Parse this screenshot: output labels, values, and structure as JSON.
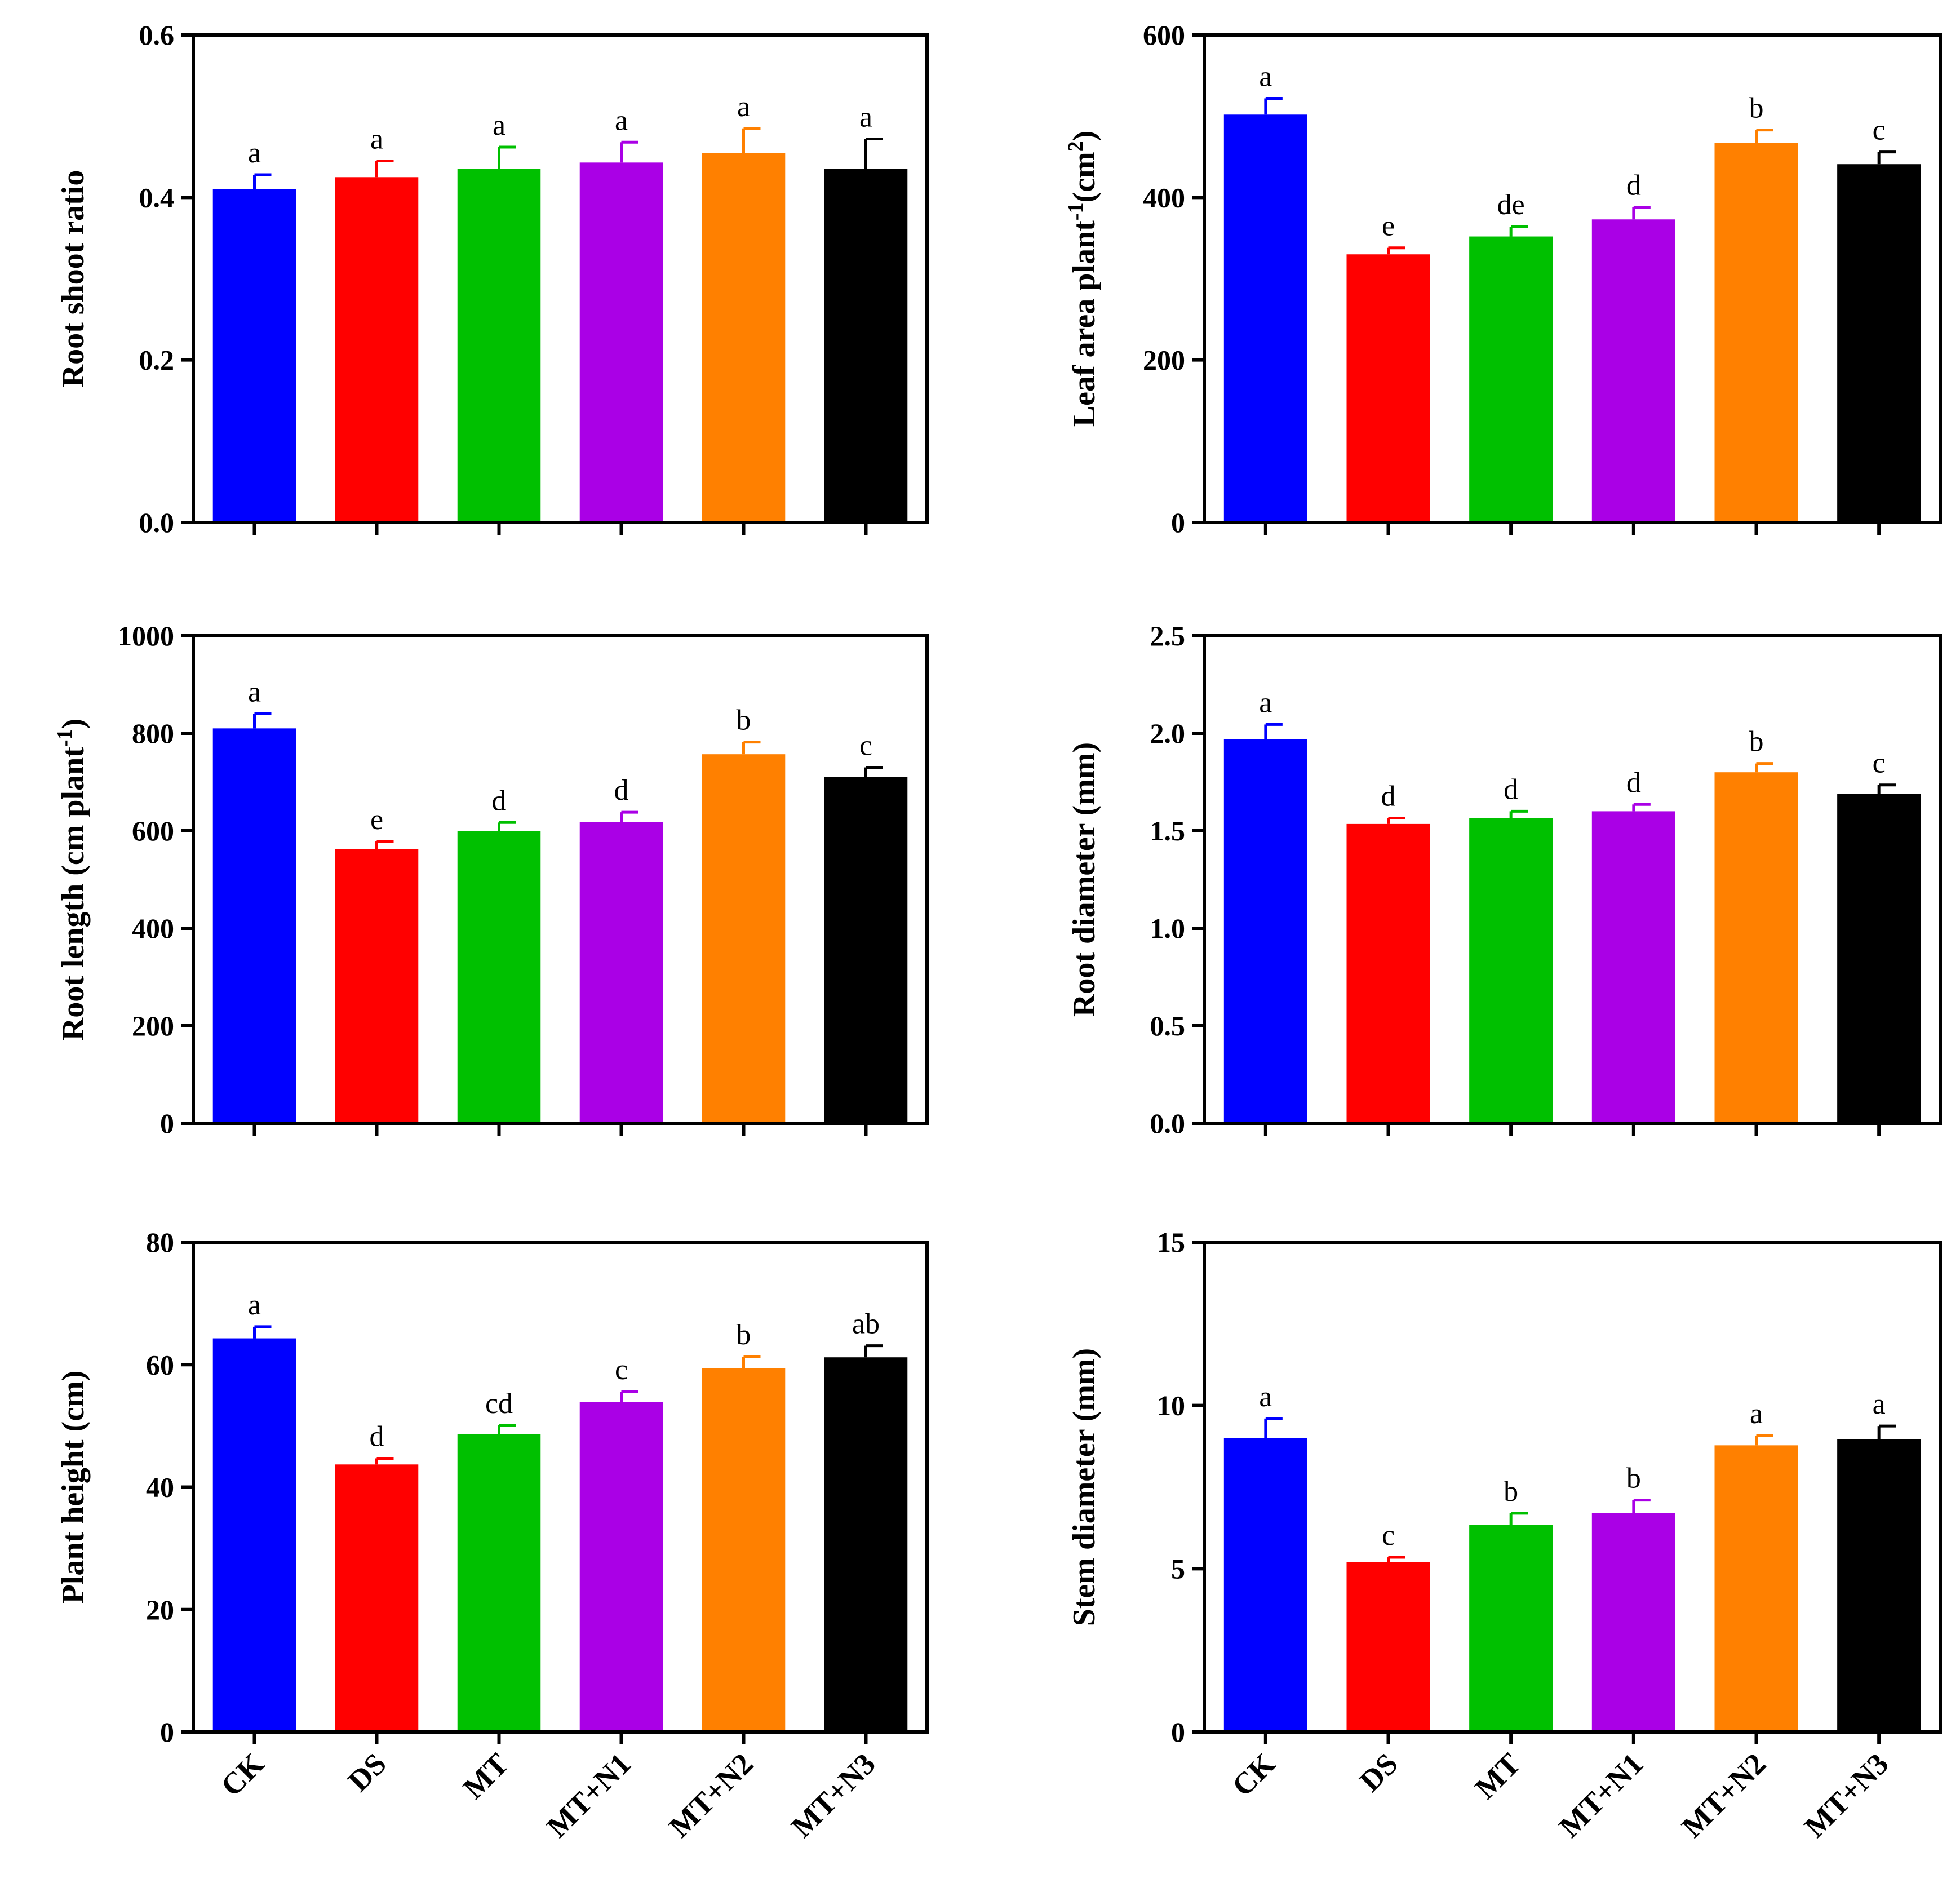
{
  "chart_data": [
    {
      "type": "bar",
      "categories": [
        "CK",
        "DS",
        "MT",
        "MT+N1",
        "MT+N2",
        "MT+N3"
      ],
      "values": [
        0.41,
        0.425,
        0.435,
        0.443,
        0.455,
        0.435
      ],
      "errors": [
        0.018,
        0.02,
        0.027,
        0.025,
        0.03,
        0.037
      ],
      "significance": [
        "a",
        "a",
        "a",
        "a",
        "a",
        "a"
      ],
      "ylabel": "Root shoot ratio",
      "ylim": [
        0,
        0.6
      ],
      "yticks": [
        0.0,
        0.2,
        0.4,
        0.6
      ],
      "ytick_labels": [
        "0.0",
        "0.2",
        "0.4",
        "0.6"
      ],
      "show_category_labels": false
    },
    {
      "type": "bar",
      "categories": [
        "CK",
        "DS",
        "MT",
        "MT+N1",
        "MT+N2",
        "MT+N3"
      ],
      "values": [
        502,
        330,
        352,
        373,
        467,
        441
      ],
      "errors": [
        20,
        8,
        12,
        15,
        16,
        15
      ],
      "significance": [
        "a",
        "e",
        "de",
        "d",
        "b",
        "c"
      ],
      "ylabel": "Leaf area plant",
      "ylabel_sup": "-1",
      "ylabel_tail": "(cm",
      "ylabel_sup2": "2",
      "ylabel_end": ")",
      "ylim": [
        0,
        600
      ],
      "yticks": [
        0,
        200,
        400,
        600
      ],
      "ytick_labels": [
        "0",
        "200",
        "400",
        "600"
      ],
      "show_category_labels": false
    },
    {
      "type": "bar",
      "categories": [
        "CK",
        "DS",
        "MT",
        "MT+N1",
        "MT+N2",
        "MT+N3"
      ],
      "values": [
        810,
        563,
        600,
        618,
        757,
        710
      ],
      "errors": [
        30,
        15,
        17,
        20,
        25,
        20
      ],
      "significance": [
        "a",
        "e",
        "d",
        "d",
        "b",
        "c"
      ],
      "ylabel": "Root length (cm plant",
      "ylabel_sup": "-1",
      "ylabel_tail": ")",
      "ylim": [
        0,
        1000
      ],
      "yticks": [
        0,
        200,
        400,
        600,
        800,
        1000
      ],
      "ytick_labels": [
        "0",
        "200",
        "400",
        "600",
        "800",
        "1000"
      ],
      "show_category_labels": false
    },
    {
      "type": "bar",
      "categories": [
        "CK",
        "DS",
        "MT",
        "MT+N1",
        "MT+N2",
        "MT+N3"
      ],
      "values": [
        1.97,
        1.535,
        1.565,
        1.6,
        1.8,
        1.69
      ],
      "errors": [
        0.075,
        0.03,
        0.035,
        0.035,
        0.045,
        0.045
      ],
      "significance": [
        "a",
        "d",
        "d",
        "d",
        "b",
        "c"
      ],
      "ylabel": "Root diameter (mm)",
      "ylim": [
        0,
        2.5
      ],
      "yticks": [
        0.0,
        0.5,
        1.0,
        1.5,
        2.0,
        2.5
      ],
      "ytick_labels": [
        "0.0",
        "0.5",
        "1.0",
        "1.5",
        "2.0",
        "2.5"
      ],
      "show_category_labels": false
    },
    {
      "type": "bar",
      "categories": [
        "CK",
        "DS",
        "MT",
        "MT+N1",
        "MT+N2",
        "MT+N3"
      ],
      "values": [
        64.3,
        43.7,
        48.7,
        53.9,
        59.4,
        61.2
      ],
      "errors": [
        1.9,
        1.0,
        1.4,
        1.7,
        1.9,
        1.9
      ],
      "significance": [
        "a",
        "d",
        "cd",
        "c",
        "b",
        "ab"
      ],
      "ylabel": "Plant height (cm)",
      "ylim": [
        0,
        80
      ],
      "yticks": [
        0,
        20,
        40,
        60,
        80
      ],
      "ytick_labels": [
        "0",
        "20",
        "40",
        "60",
        "80"
      ],
      "show_category_labels": true
    },
    {
      "type": "bar",
      "categories": [
        "CK",
        "DS",
        "MT",
        "MT+N1",
        "MT+N2",
        "MT+N3"
      ],
      "values": [
        9.0,
        5.2,
        6.35,
        6.7,
        8.78,
        8.97
      ],
      "errors": [
        0.6,
        0.15,
        0.35,
        0.4,
        0.3,
        0.4
      ],
      "significance": [
        "a",
        "c",
        "b",
        "b",
        "a",
        "a"
      ],
      "ylabel": "Stem diameter (mm)",
      "ylim": [
        0,
        15
      ],
      "yticks": [
        0,
        5,
        10,
        15
      ],
      "ytick_labels": [
        "0",
        "5",
        "10",
        "15"
      ],
      "show_category_labels": true
    }
  ],
  "series_colors": [
    "#0000ff",
    "#ff0000",
    "#00c000",
    "#aa00e6",
    "#ff8000",
    "#000000"
  ]
}
